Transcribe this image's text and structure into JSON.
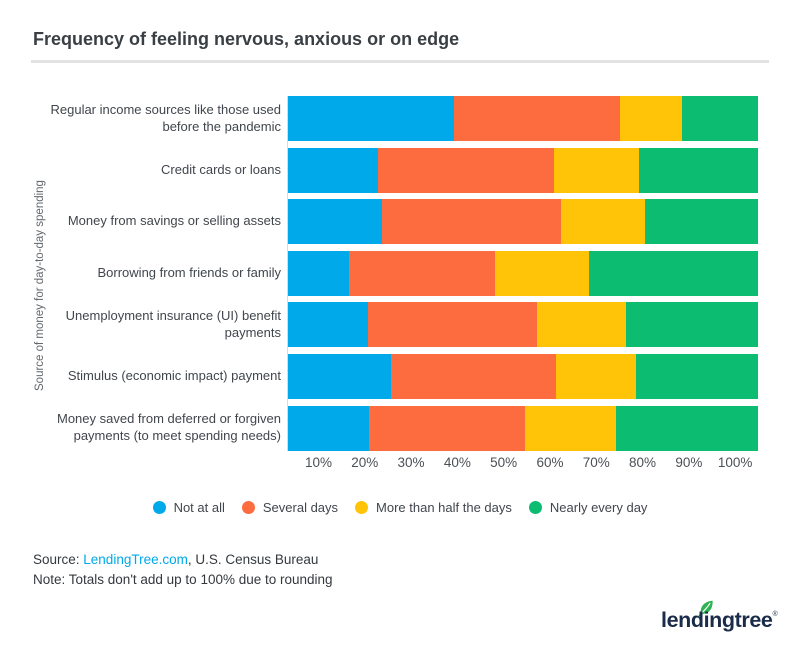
{
  "title": "Frequency of feeling nervous, anxious or on edge",
  "chart_data": {
    "type": "bar",
    "stacked": true,
    "orientation": "horizontal",
    "title": "Frequency of feeling nervous, anxious or on edge",
    "ylabel": "Source of money for day-to-day spending",
    "xlabel": "",
    "x_ticks": [
      "10%",
      "20%",
      "30%",
      "40%",
      "50%",
      "60%",
      "70%",
      "80%",
      "90%",
      "100%"
    ],
    "xlim_percent": [
      0,
      100
    ],
    "grid": false,
    "legend_position": "bottom",
    "value_unit": "percent of respondents",
    "categories": [
      "Regular income sources like those used before the pandemic",
      "Credit cards or loans",
      "Money from savings or selling assets",
      "Borrowing from friends or family",
      "Unemployment insurance (UI) benefit payments",
      "Stimulus (economic impact) payment",
      "Money saved from deferred or forgiven payments (to meet spending needs)"
    ],
    "series": [
      {
        "name": "Not at all",
        "color": "#00a9e9",
        "values": [
          35,
          19,
          20,
          13,
          17,
          22,
          17
        ]
      },
      {
        "name": "Several days",
        "color": "#fc6c3f",
        "values": [
          35,
          37,
          38,
          31,
          36,
          35,
          33
        ]
      },
      {
        "name": "More than half the days",
        "color": "#ffc408",
        "values": [
          13,
          18,
          18,
          20,
          19,
          17,
          19
        ]
      },
      {
        "name": "Nearly every day",
        "color": "#0cbd71",
        "values": [
          16,
          25,
          24,
          36,
          28,
          26,
          30
        ]
      }
    ]
  },
  "footer": {
    "source_prefix": "Source: ",
    "source_link": "LendingTree.com",
    "source_rest": ", U.S. Census Bureau",
    "note": "Note: Totals don't add up to 100% due to rounding"
  },
  "logo": {
    "text": "lendingtree",
    "registered": "®",
    "leaf_icon": "leaf-icon",
    "navy": "#1b2b4a",
    "leaf_green": "#2db352"
  }
}
